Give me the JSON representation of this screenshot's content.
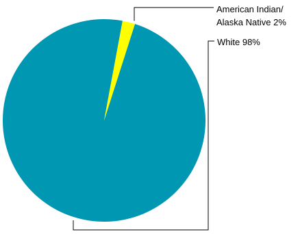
{
  "chart_data": {
    "type": "pie",
    "title": "",
    "slices": [
      {
        "label": "White",
        "value": 98,
        "value_label": "98%",
        "color": "#0097b2"
      },
      {
        "label": "American Indian/ Alaska Native",
        "value": 2,
        "value_label": "2%",
        "color": "#ffff00"
      }
    ],
    "labels": [
      {
        "lines": [
          "American Indian/",
          "Alaska Native 2%"
        ]
      },
      {
        "lines": [
          "White 98%"
        ]
      }
    ],
    "legend": "none"
  }
}
